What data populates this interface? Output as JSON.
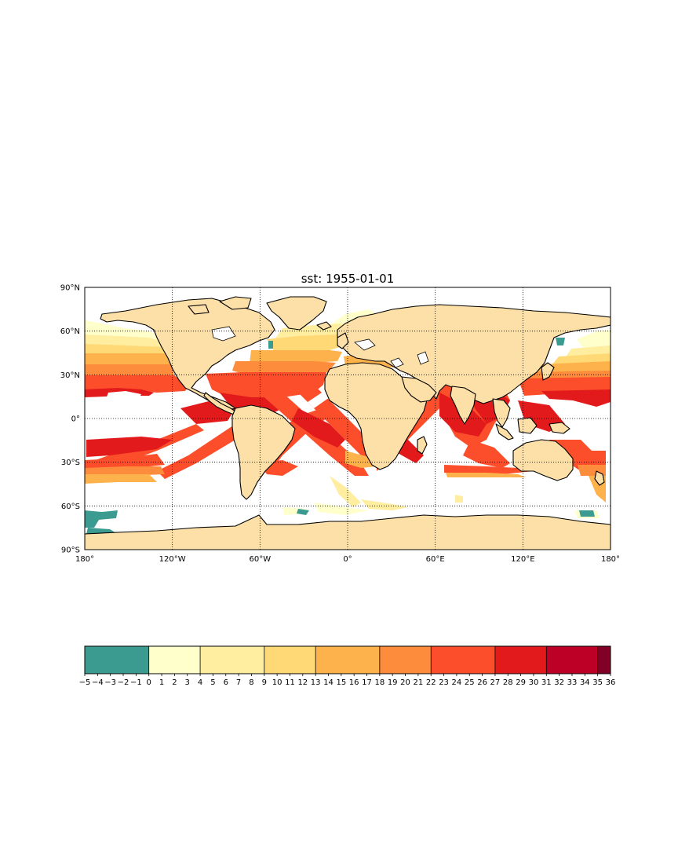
{
  "title": "sst: 1955-01-01",
  "map": {
    "projection": "cylindrical",
    "lon_range": [
      -180,
      180
    ],
    "lat_range": [
      -90,
      90
    ],
    "gridlines": "dotted",
    "land_color": "#fde0a8",
    "ocean_nodata_color": "#ffffff",
    "coastline_color": "#000000",
    "lat_ticks": [
      {
        "value": 90,
        "label": "90°N"
      },
      {
        "value": 60,
        "label": "60°N"
      },
      {
        "value": 30,
        "label": "30°N"
      },
      {
        "value": 0,
        "label": "0°"
      },
      {
        "value": -30,
        "label": "30°S"
      },
      {
        "value": -60,
        "label": "60°S"
      },
      {
        "value": -90,
        "label": "90°S"
      }
    ],
    "lon_ticks": [
      {
        "value": -180,
        "label": "180°"
      },
      {
        "value": -120,
        "label": "120°W"
      },
      {
        "value": -60,
        "label": "60°W"
      },
      {
        "value": 0,
        "label": "0°"
      },
      {
        "value": 60,
        "label": "60°E"
      },
      {
        "value": 120,
        "label": "120°E"
      },
      {
        "value": 180,
        "label": "180°"
      }
    ]
  },
  "colorbar": {
    "min": -5,
    "max": 36,
    "ticks": [
      "−5",
      "−4",
      "−3",
      "−2",
      "−1",
      "0",
      "1",
      "2",
      "3",
      "4",
      "5",
      "6",
      "7",
      "8",
      "9",
      "10",
      "11",
      "12",
      "13",
      "14",
      "15",
      "16",
      "17",
      "18",
      "19",
      "20",
      "21",
      "22",
      "23",
      "24",
      "25",
      "26",
      "27",
      "28",
      "29",
      "30",
      "31",
      "32",
      "33",
      "34",
      "35",
      "36"
    ],
    "bins": [
      {
        "from": -5,
        "to": 0,
        "color": "#3b9b91"
      },
      {
        "from": 0,
        "to": 4,
        "color": "#ffffcc"
      },
      {
        "from": 4,
        "to": 9,
        "color": "#ffeda0"
      },
      {
        "from": 9,
        "to": 13,
        "color": "#fed976"
      },
      {
        "from": 13,
        "to": 18,
        "color": "#feb24c"
      },
      {
        "from": 18,
        "to": 22,
        "color": "#fd8d3c"
      },
      {
        "from": 22,
        "to": 27,
        "color": "#fc4e2a"
      },
      {
        "from": 27,
        "to": 31,
        "color": "#e31a1c"
      },
      {
        "from": 31,
        "to": 35,
        "color": "#bd0026"
      },
      {
        "from": 35,
        "to": 36,
        "color": "#800026"
      }
    ]
  }
}
